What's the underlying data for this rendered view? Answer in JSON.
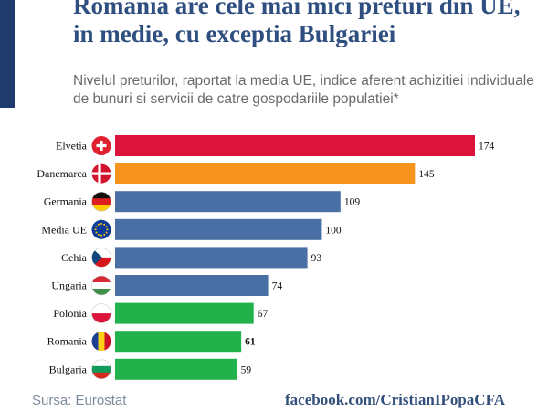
{
  "header": {
    "title": "Romania are cele mai mici preturi din UE, in medie, cu exceptia Bulgariei",
    "subtitle": "Nivelul preturilor, raportat la media UE, indice aferent achizitiei individuale de bunuri si servicii de catre gospodariile populatiei*"
  },
  "footer": {
    "source": "Sursa: Eurostat",
    "link": "facebook.com/CristianIPopaCFA"
  },
  "colors": {
    "title": "#2f4f80",
    "accent_bar": "#1f3b6e",
    "red": "#dc143c",
    "orange": "#f7941d",
    "blue": "#4a6fa5",
    "green": "#22b24c"
  },
  "chart_data": {
    "type": "bar",
    "orientation": "horizontal",
    "categories": [
      "Elvetia",
      "Danemarca",
      "Germania",
      "Media UE",
      "Cehia",
      "Ungaria",
      "Polonia",
      "Romania",
      "Bulgaria"
    ],
    "values": [
      174,
      145,
      109,
      100,
      93,
      74,
      67,
      61,
      59
    ],
    "bar_colors": [
      "#dc143c",
      "#f7941d",
      "#4a6fa5",
      "#4a6fa5",
      "#4a6fa5",
      "#4a6fa5",
      "#22b24c",
      "#22b24c",
      "#22b24c"
    ],
    "flag_icons": [
      "switzerland-flag-icon",
      "denmark-flag-icon",
      "germany-flag-icon",
      "eu-flag-icon",
      "czechia-flag-icon",
      "hungary-flag-icon",
      "poland-flag-icon",
      "romania-flag-icon",
      "bulgaria-flag-icon"
    ],
    "highlighted_value": "Romania",
    "xlim": [
      0,
      174
    ],
    "grid": false,
    "legend": "none"
  }
}
